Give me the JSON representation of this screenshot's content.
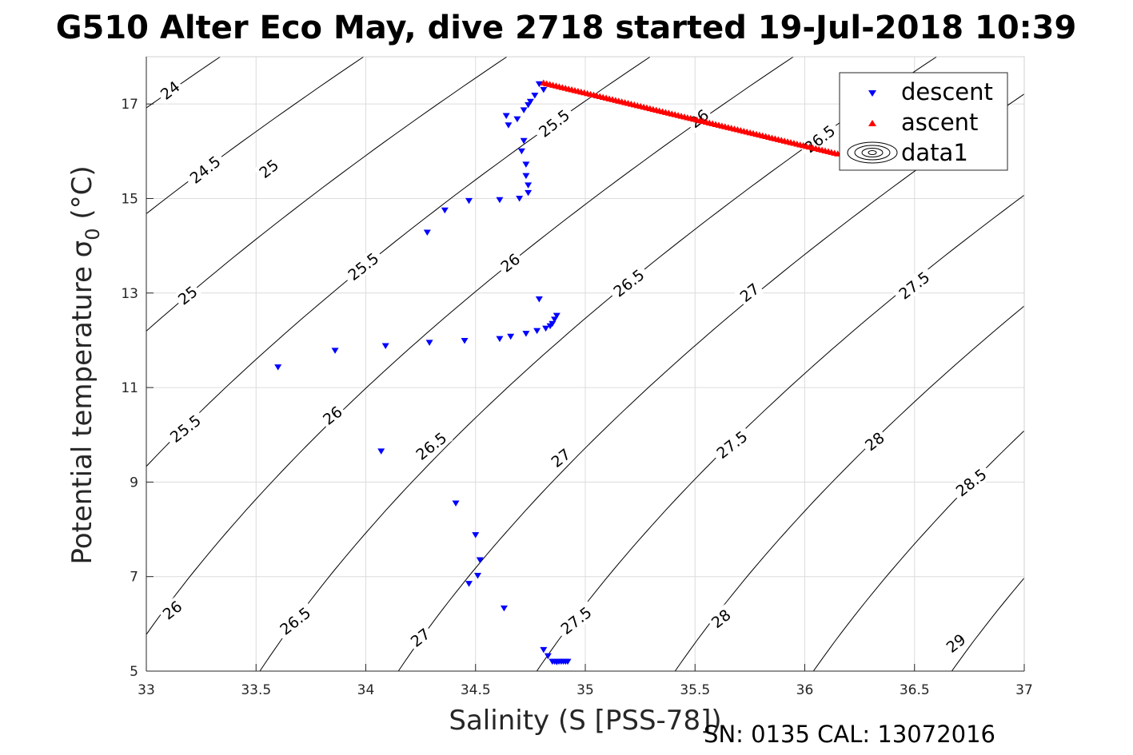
{
  "chart_data": {
    "type": "scatter",
    "title": "G510 Alter Eco May, dive 2718 started 19-Jul-2018 10:39",
    "xlabel": "Salinity (S [PSS-78])",
    "ylabel": "Potential temperature σ",
    "ylabel_sub": "0",
    "ylabel_unit": " (°C)",
    "footer": "SN: 0135  CAL: 13072016",
    "xlim": [
      33,
      37
    ],
    "ylim": [
      5,
      18
    ],
    "xticks": [
      33,
      33.5,
      34,
      34.5,
      35,
      35.5,
      36,
      36.5,
      37
    ],
    "xtick_labels": [
      "33",
      "33.5",
      "34",
      "34.5",
      "35",
      "35.5",
      "36",
      "36.5",
      "37"
    ],
    "yticks": [
      5,
      7,
      9,
      11,
      13,
      15,
      17
    ],
    "ytick_labels": [
      "5",
      "7",
      "9",
      "11",
      "13",
      "15",
      "17"
    ],
    "grid": true,
    "legend_position": "top-right",
    "colors": {
      "descent": "#0000ff",
      "ascent": "#ff0000",
      "contour": "#000000",
      "grid": "#dcdcdc"
    },
    "series": [
      {
        "name": "descent",
        "marker": "triangle-down",
        "points": [
          [
            34.79,
            17.42
          ],
          [
            34.81,
            17.3
          ],
          [
            34.77,
            17.18
          ],
          [
            34.75,
            17.05
          ],
          [
            34.74,
            16.98
          ],
          [
            34.72,
            16.87
          ],
          [
            34.64,
            16.75
          ],
          [
            34.69,
            16.68
          ],
          [
            34.65,
            16.55
          ],
          [
            34.72,
            16.22
          ],
          [
            34.71,
            16.0
          ],
          [
            34.73,
            15.72
          ],
          [
            34.73,
            15.48
          ],
          [
            34.74,
            15.28
          ],
          [
            34.74,
            15.12
          ],
          [
            34.7,
            15.0
          ],
          [
            34.61,
            14.97
          ],
          [
            34.47,
            14.95
          ],
          [
            34.36,
            14.75
          ],
          [
            34.28,
            14.28
          ],
          [
            34.79,
            12.87
          ],
          [
            34.87,
            12.52
          ],
          [
            34.86,
            12.44
          ],
          [
            34.85,
            12.35
          ],
          [
            34.84,
            12.3
          ],
          [
            34.82,
            12.25
          ],
          [
            34.78,
            12.2
          ],
          [
            34.73,
            12.14
          ],
          [
            34.66,
            12.08
          ],
          [
            34.61,
            12.03
          ],
          [
            34.45,
            11.99
          ],
          [
            34.29,
            11.95
          ],
          [
            34.09,
            11.88
          ],
          [
            33.86,
            11.78
          ],
          [
            33.6,
            11.43
          ],
          [
            34.07,
            9.65
          ],
          [
            34.41,
            8.55
          ],
          [
            34.5,
            7.88
          ],
          [
            34.52,
            7.35
          ],
          [
            34.51,
            7.02
          ],
          [
            34.47,
            6.85
          ],
          [
            34.63,
            6.33
          ],
          [
            34.81,
            5.45
          ],
          [
            34.83,
            5.32
          ],
          [
            34.85,
            5.2
          ],
          [
            34.86,
            5.2
          ],
          [
            34.87,
            5.19
          ],
          [
            34.88,
            5.2
          ],
          [
            34.89,
            5.2
          ],
          [
            34.9,
            5.2
          ],
          [
            34.91,
            5.2
          ],
          [
            34.92,
            5.2
          ]
        ]
      },
      {
        "name": "ascent",
        "marker": "triangle-up",
        "line": {
          "from": [
            34.81,
            17.45
          ],
          "to": [
            36.15,
            15.95
          ],
          "count": 95
        }
      }
    ],
    "contours": {
      "name": "data1",
      "levels": [
        24,
        24.5,
        25,
        25.5,
        26,
        26.5,
        27,
        27.5,
        28,
        28.5,
        29
      ],
      "labels": [
        {
          "text": "24",
          "at": [
            33.11,
            17.28
          ]
        },
        {
          "text": "24.5",
          "at": [
            33.27,
            15.6
          ]
        },
        {
          "text": "25",
          "at": [
            33.56,
            15.62
          ]
        },
        {
          "text": "25.5",
          "at": [
            34.86,
            16.58
          ]
        },
        {
          "text": "26",
          "at": [
            35.52,
            16.68
          ]
        },
        {
          "text": "26.5",
          "at": [
            36.07,
            16.25
          ]
        },
        {
          "text": "25",
          "at": [
            33.19,
            12.94
          ]
        },
        {
          "text": "25.5",
          "at": [
            33.99,
            13.55
          ]
        },
        {
          "text": "26",
          "at": [
            34.66,
            13.63
          ]
        },
        {
          "text": "26.5",
          "at": [
            35.2,
            13.2
          ]
        },
        {
          "text": "27",
          "at": [
            35.75,
            13.0
          ]
        },
        {
          "text": "27.5",
          "at": [
            36.5,
            13.15
          ]
        },
        {
          "text": "25.5",
          "at": [
            33.18,
            10.12
          ]
        },
        {
          "text": "26",
          "at": [
            33.85,
            10.4
          ]
        },
        {
          "text": "26.5",
          "at": [
            34.3,
            9.75
          ]
        },
        {
          "text": "27",
          "at": [
            34.89,
            9.5
          ]
        },
        {
          "text": "27.5",
          "at": [
            35.67,
            9.78
          ]
        },
        {
          "text": "28",
          "at": [
            36.32,
            9.85
          ]
        },
        {
          "text": "28.5",
          "at": [
            36.76,
            8.98
          ]
        },
        {
          "text": "26",
          "at": [
            33.12,
            6.28
          ]
        },
        {
          "text": "26.5",
          "at": [
            33.68,
            6.05
          ]
        },
        {
          "text": "27",
          "at": [
            34.25,
            5.7
          ]
        },
        {
          "text": "27.5",
          "at": [
            34.96,
            6.06
          ]
        },
        {
          "text": "28",
          "at": [
            35.62,
            6.1
          ]
        },
        {
          "text": "29",
          "at": [
            36.69,
            5.58
          ]
        }
      ]
    }
  }
}
